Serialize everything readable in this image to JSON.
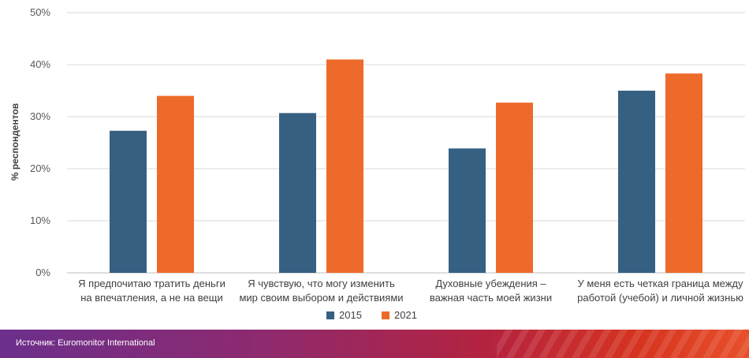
{
  "chart_data": {
    "type": "bar",
    "categories": [
      [
        "Я предпочитаю тратить деньги",
        "на впечатления, а не на вещи"
      ],
      [
        "Я чувствую, что могу изменить",
        "мир своим выбором и действиями"
      ],
      [
        "Духовные убеждения –",
        "важная часть моей жизни"
      ],
      [
        "У меня есть четкая граница между",
        "работой (учебой) и личной жизнью"
      ]
    ],
    "series": [
      {
        "name": "2015",
        "color": "#366082",
        "values": [
          27.3,
          30.7,
          23.9,
          35.0
        ]
      },
      {
        "name": "2021",
        "color": "#ee6a2b",
        "values": [
          34.0,
          41.0,
          32.7,
          38.3
        ]
      }
    ],
    "ylabel": "% респондентов",
    "ylim": [
      0,
      50
    ],
    "yticks": [
      "0%",
      "10%",
      "20%",
      "30%",
      "40%",
      "50%"
    ],
    "grid": true,
    "legend_position": "bottom"
  },
  "footer": {
    "source": "Источник: Euromonitor International"
  }
}
